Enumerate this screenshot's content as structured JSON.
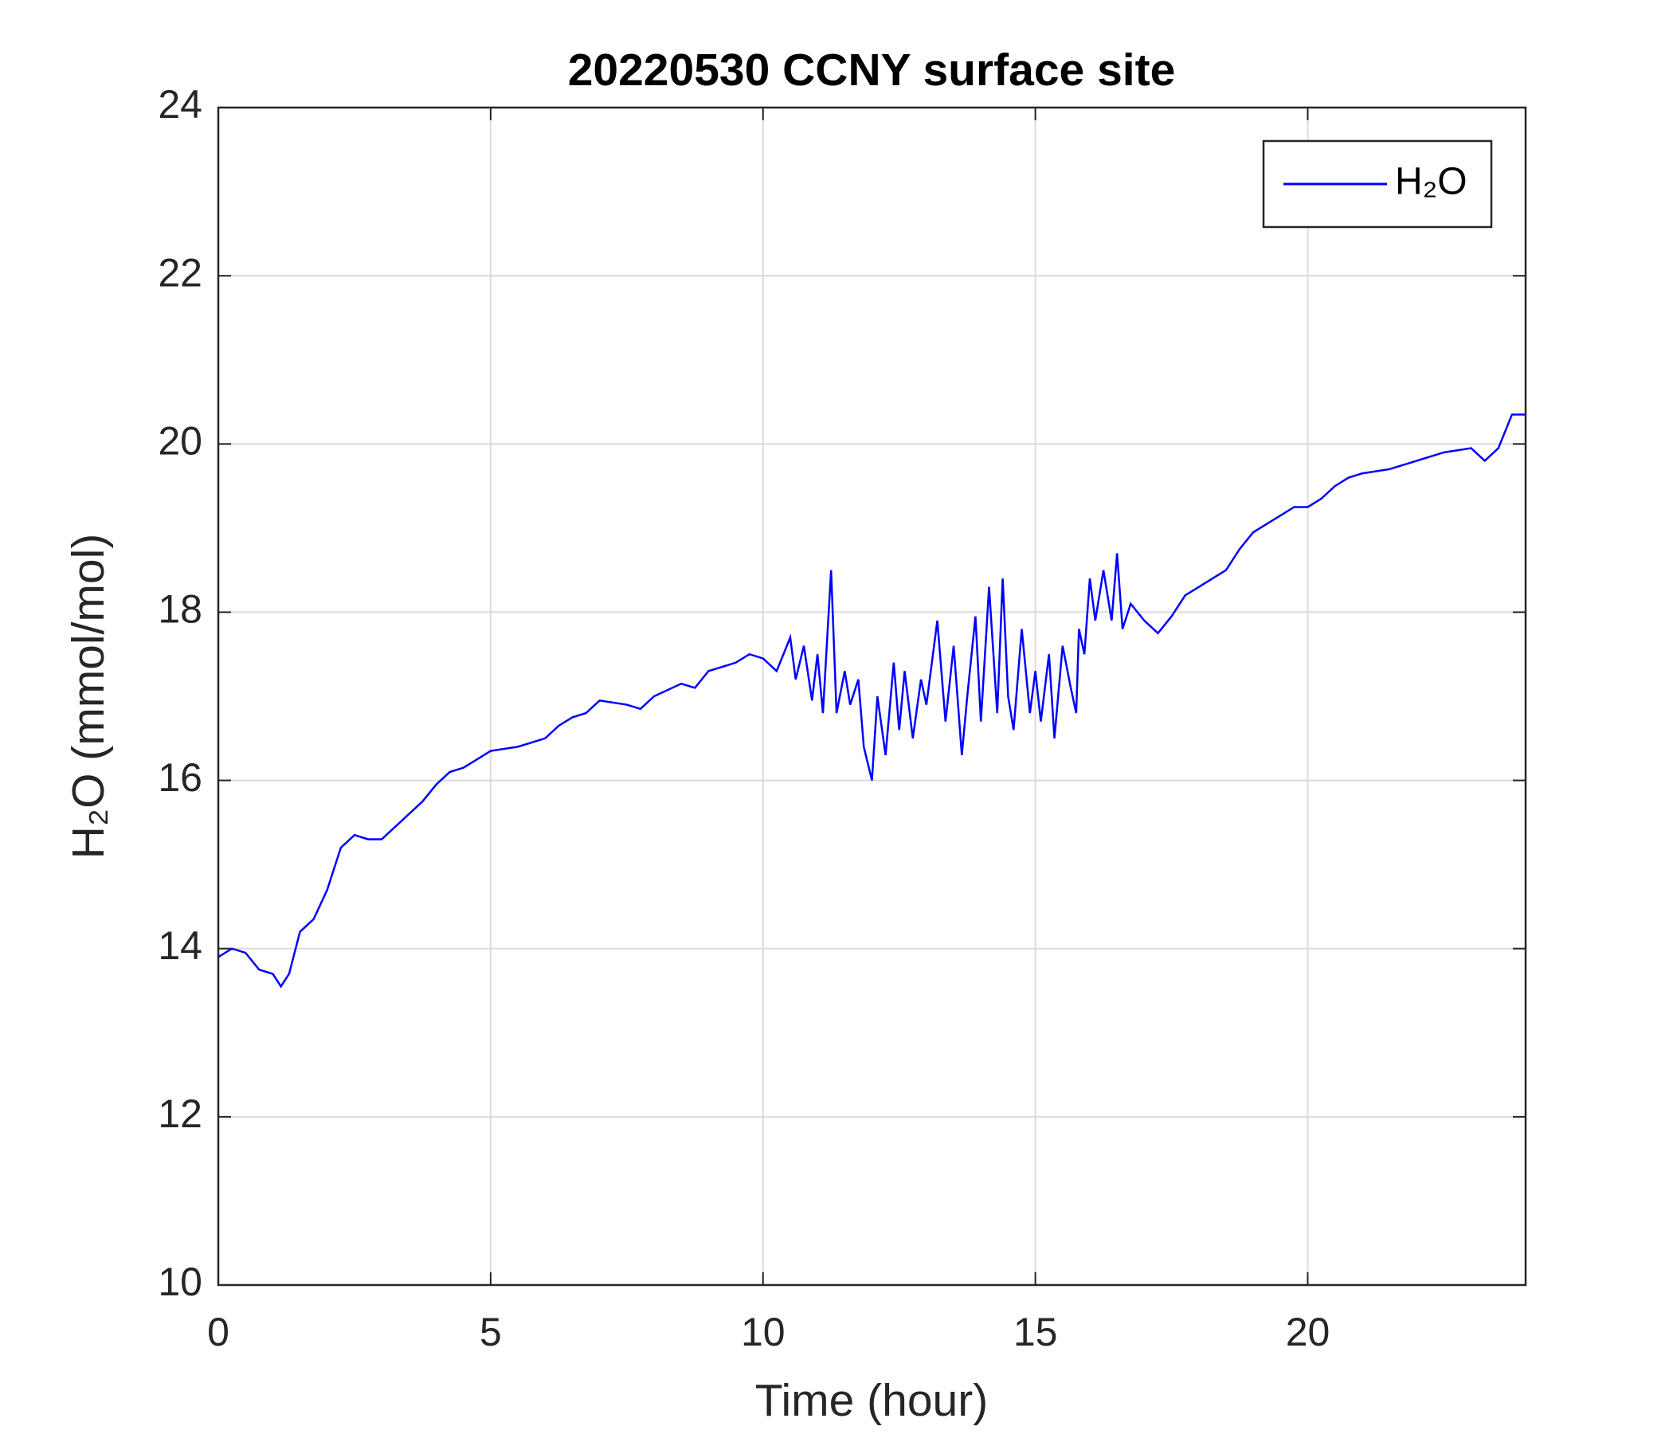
{
  "chart_data": {
    "type": "line",
    "title": "20220530 CCNY surface site",
    "x_label": "Time (hour)",
    "y_label": "H₂O (mmol/mol)",
    "xlim": [
      0,
      24
    ],
    "xticks": [
      0,
      5,
      10,
      15,
      20
    ],
    "ylim": [
      10,
      24
    ],
    "yticks": [
      10,
      12,
      14,
      16,
      18,
      20,
      22,
      24
    ],
    "grid": true,
    "legend": "upper right",
    "x": [
      0,
      0.25,
      0.5,
      0.75,
      1.0,
      1.15,
      1.3,
      1.5,
      1.75,
      2.0,
      2.25,
      2.5,
      2.75,
      3.0,
      3.25,
      3.5,
      3.75,
      4.0,
      4.25,
      4.5,
      4.75,
      5.0,
      5.5,
      6.0,
      6.25,
      6.5,
      6.75,
      7.0,
      7.5,
      7.75,
      8.0,
      8.5,
      8.75,
      9.0,
      9.25,
      9.5,
      9.75,
      10.0,
      10.25,
      10.5,
      10.6,
      10.75,
      10.9,
      11.0,
      11.1,
      11.25,
      11.35,
      11.5,
      11.6,
      11.75,
      11.85,
      12.0,
      12.1,
      12.25,
      12.4,
      12.5,
      12.6,
      12.75,
      12.9,
      13.0,
      13.2,
      13.35,
      13.5,
      13.65,
      13.75,
      13.9,
      14.0,
      14.15,
      14.3,
      14.4,
      14.5,
      14.6,
      14.75,
      14.9,
      15.0,
      15.1,
      15.25,
      15.35,
      15.5,
      15.65,
      15.75,
      15.8,
      15.9,
      16.0,
      16.1,
      16.25,
      16.4,
      16.5,
      16.6,
      16.75,
      17.0,
      17.25,
      17.5,
      17.75,
      18.0,
      18.25,
      18.5,
      18.75,
      19.0,
      19.25,
      19.5,
      19.75,
      20.0,
      20.25,
      20.5,
      20.75,
      21.0,
      21.5,
      22.0,
      22.5,
      23.0,
      23.25,
      23.5,
      23.75,
      24.0
    ],
    "series": [
      {
        "name": "H₂O",
        "color": "#0000ff",
        "values": [
          13.9,
          14.0,
          13.95,
          13.75,
          13.7,
          13.55,
          13.7,
          14.2,
          14.35,
          14.7,
          15.2,
          15.35,
          15.3,
          15.3,
          15.45,
          15.6,
          15.75,
          15.95,
          16.1,
          16.15,
          16.25,
          16.35,
          16.4,
          16.5,
          16.65,
          16.75,
          16.8,
          16.95,
          16.9,
          16.85,
          17.0,
          17.15,
          17.1,
          17.3,
          17.35,
          17.4,
          17.5,
          17.45,
          17.3,
          17.7,
          17.2,
          17.6,
          16.95,
          17.5,
          16.8,
          18.5,
          16.8,
          17.3,
          16.9,
          17.2,
          16.4,
          16.0,
          17.0,
          16.3,
          17.4,
          16.6,
          17.3,
          16.5,
          17.2,
          16.9,
          17.9,
          16.7,
          17.6,
          16.3,
          17.0,
          17.95,
          16.7,
          18.3,
          16.8,
          18.4,
          17.0,
          16.6,
          17.8,
          16.8,
          17.3,
          16.7,
          17.5,
          16.5,
          17.6,
          17.1,
          16.8,
          17.8,
          17.5,
          18.4,
          17.9,
          18.5,
          17.9,
          18.7,
          17.8,
          18.1,
          17.9,
          17.75,
          17.95,
          18.2,
          18.3,
          18.4,
          18.5,
          18.75,
          18.95,
          19.05,
          19.15,
          19.25,
          19.25,
          19.35,
          19.5,
          19.6,
          19.65,
          19.7,
          19.8,
          19.9,
          19.95,
          19.8,
          19.95,
          20.35,
          20.35
        ]
      }
    ]
  }
}
